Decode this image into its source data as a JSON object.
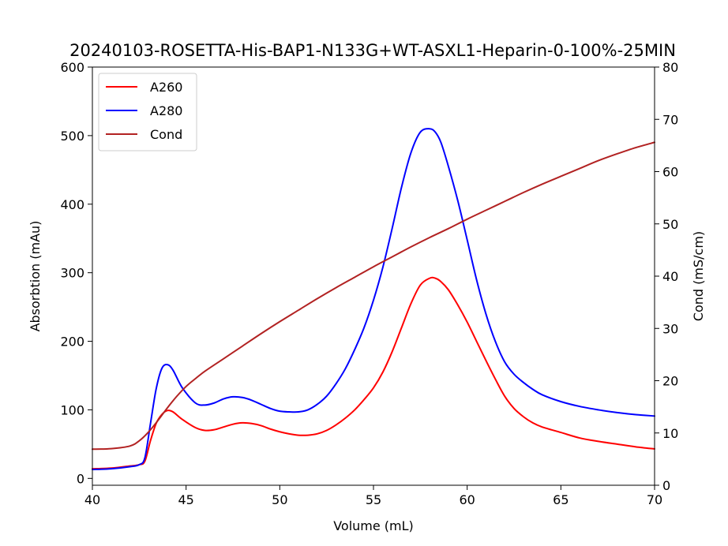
{
  "chart_data": {
    "type": "line",
    "title": "20240103-ROSETTA-His-BAP1-N133G+WT-ASXL1-Heparin-0-100%-25MIN",
    "xlabel": "Volume (mL)",
    "ylabel": "Absorbtion (mAu)",
    "y2label": "Cond (mS/cm)",
    "xlim": [
      40,
      70
    ],
    "ylim": [
      -10,
      600
    ],
    "y2lim": [
      0,
      80
    ],
    "xticks": [
      "40",
      "45",
      "50",
      "55",
      "60",
      "65",
      "70"
    ],
    "yticks": [
      "0",
      "100",
      "200",
      "300",
      "400",
      "500",
      "600"
    ],
    "y2ticks": [
      "0",
      "10",
      "20",
      "30",
      "40",
      "50",
      "60",
      "70",
      "80"
    ],
    "legend_position": "upper-left",
    "grid": false,
    "series": [
      {
        "name": "A260",
        "axis": "left",
        "color": "#ff0000",
        "x": [
          40,
          41,
          42,
          42.5,
          42.8,
          43.1,
          43.4,
          43.7,
          44,
          44.3,
          44.8,
          45.5,
          46,
          46.5,
          47,
          47.5,
          48,
          48.5,
          49,
          49.5,
          50,
          50.5,
          51,
          51.5,
          52,
          52.5,
          53,
          53.5,
          54,
          54.5,
          55,
          55.5,
          56,
          56.5,
          57,
          57.5,
          58,
          58.3,
          58.6,
          59,
          59.5,
          60,
          60.5,
          61,
          61.5,
          62,
          62.5,
          63,
          63.5,
          64,
          65,
          66,
          67,
          68,
          69,
          70
        ],
        "y": [
          14,
          15,
          18,
          20,
          25,
          55,
          80,
          93,
          99,
          97,
          86,
          74,
          70,
          71,
          75,
          79,
          81,
          80,
          77,
          72,
          68,
          65,
          63,
          63,
          65,
          70,
          78,
          88,
          100,
          115,
          132,
          155,
          185,
          220,
          255,
          282,
          292,
          292,
          287,
          275,
          253,
          228,
          200,
          172,
          145,
          120,
          102,
          90,
          81,
          75,
          67,
          59,
          54,
          50,
          46,
          43
        ]
      },
      {
        "name": "A280",
        "axis": "left",
        "color": "#0000ff",
        "x": [
          40,
          41,
          42,
          42.5,
          42.8,
          43.1,
          43.4,
          43.7,
          44,
          44.3,
          44.8,
          45.5,
          46,
          46.5,
          47,
          47.5,
          48,
          48.5,
          49,
          49.5,
          50,
          50.5,
          51,
          51.5,
          52,
          52.5,
          53,
          53.5,
          54,
          54.5,
          55,
          55.5,
          56,
          56.5,
          57,
          57.5,
          58,
          58.3,
          58.6,
          59,
          59.5,
          60,
          60.5,
          61,
          61.5,
          62,
          62.5,
          63,
          63.5,
          64,
          65,
          66,
          67,
          68,
          69,
          70
        ],
        "y": [
          13,
          14,
          17,
          20,
          30,
          80,
          130,
          160,
          166,
          158,
          132,
          110,
          107,
          110,
          116,
          119,
          118,
          114,
          108,
          102,
          98,
          97,
          97,
          100,
          108,
          120,
          138,
          160,
          188,
          220,
          260,
          308,
          365,
          425,
          475,
          505,
          510,
          505,
          490,
          455,
          405,
          348,
          290,
          240,
          200,
          170,
          152,
          140,
          130,
          122,
          112,
          105,
          100,
          96,
          93,
          91
        ]
      },
      {
        "name": "Cond",
        "axis": "right",
        "color": "#b22222",
        "x": [
          40,
          41,
          42,
          42.5,
          43,
          43.5,
          44,
          44.5,
          45,
          45.5,
          46,
          47,
          48,
          49,
          50,
          51,
          52,
          53,
          54,
          55,
          56,
          57,
          58,
          59,
          60,
          61,
          62,
          63,
          64,
          65,
          66,
          67,
          68,
          69,
          70
        ],
        "y": [
          6.9,
          7.0,
          7.5,
          8.5,
          10.2,
          12.4,
          14.8,
          17.0,
          18.9,
          20.4,
          21.8,
          24.2,
          26.6,
          29.0,
          31.3,
          33.5,
          35.7,
          37.8,
          39.8,
          41.8,
          43.7,
          45.6,
          47.4,
          49.1,
          50.9,
          52.6,
          54.3,
          56.0,
          57.6,
          59.1,
          60.6,
          62.1,
          63.4,
          64.6,
          65.6
        ]
      }
    ]
  }
}
